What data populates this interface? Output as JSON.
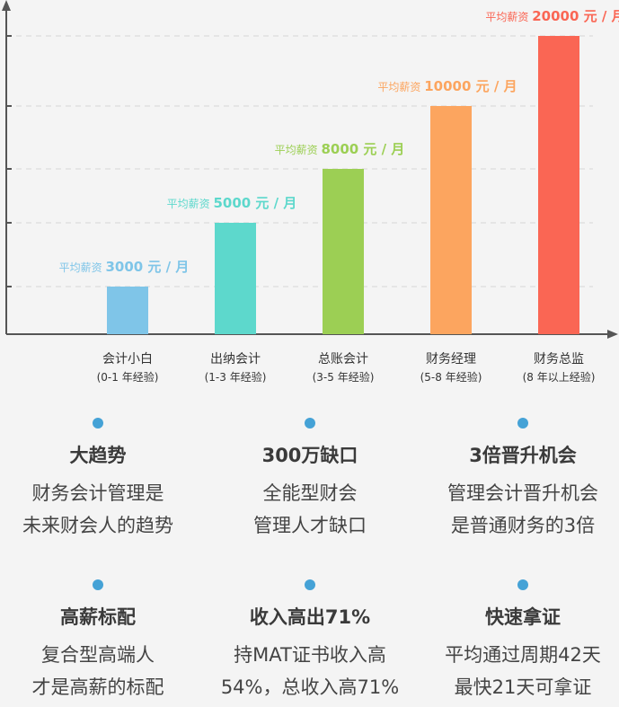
{
  "chart_data": {
    "type": "bar",
    "categories": [
      "会计小白",
      "出纳会计",
      "总账会计",
      "财务经理",
      "财务总监"
    ],
    "category_sublabels": [
      "(0-1 年经验)",
      "(1-3 年经验)",
      "(3-5 年经验)",
      "(5-8 年经验)",
      "(8 年以上经验)"
    ],
    "values": [
      3000,
      5000,
      8000,
      10000,
      20000
    ],
    "label_prefix": "平均薪资",
    "value_labels": [
      "3000 元 / 月",
      "5000 元 / 月",
      "8000 元 / 月",
      "10000 元 / 月",
      "20000 元 / 月"
    ],
    "colors": [
      "#7fc5e8",
      "#5dd8cc",
      "#9ccf54",
      "#fca55f",
      "#fa6654"
    ],
    "grid": true
  },
  "features": [
    {
      "title": "大趋势",
      "lines": [
        "财务会计管理是",
        "未来财会人的趋势"
      ]
    },
    {
      "title": "300万缺口",
      "lines": [
        "全能型财会",
        "管理人才缺口"
      ]
    },
    {
      "title": "3倍晋升机会",
      "lines": [
        "管理会计晋升机会",
        "是普通财务的3倍"
      ]
    },
    {
      "title": "高薪标配",
      "lines": [
        "复合型高端人",
        "才是高薪的标配"
      ]
    },
    {
      "title": "收入高出71%",
      "lines": [
        "持MAT证书收入高",
        "54%，总收入高71%"
      ]
    },
    {
      "title": "快速拿证",
      "lines": [
        "平均通过周期42天",
        "最快21天可拿证"
      ]
    }
  ],
  "colors": {
    "dot": "#45a2d6",
    "axis": "#555555"
  }
}
